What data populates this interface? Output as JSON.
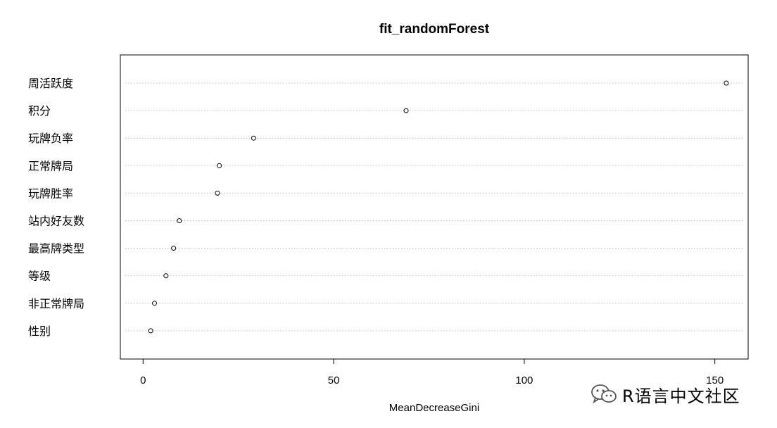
{
  "chart_data": {
    "type": "scatter",
    "subtype": "dotchart",
    "title": "fit_randomForest",
    "xlabel": "MeanDecreaseGini",
    "ylabel": "",
    "xlim": [
      -6,
      159
    ],
    "x_ticks": [
      0,
      50,
      100,
      150
    ],
    "grid": "dotted horizontal per row",
    "categories": [
      "周活跃度",
      "积分",
      "玩牌负率",
      "正常牌局",
      "玩牌胜率",
      "站内好友数",
      "最高牌类型",
      "等级",
      "非正常牌局",
      "性别"
    ],
    "values": [
      153,
      69,
      29,
      20,
      19.5,
      9.5,
      8,
      6,
      3,
      2
    ]
  },
  "watermark": {
    "text": "R语言中文社区",
    "icon": "wechat-icon"
  }
}
